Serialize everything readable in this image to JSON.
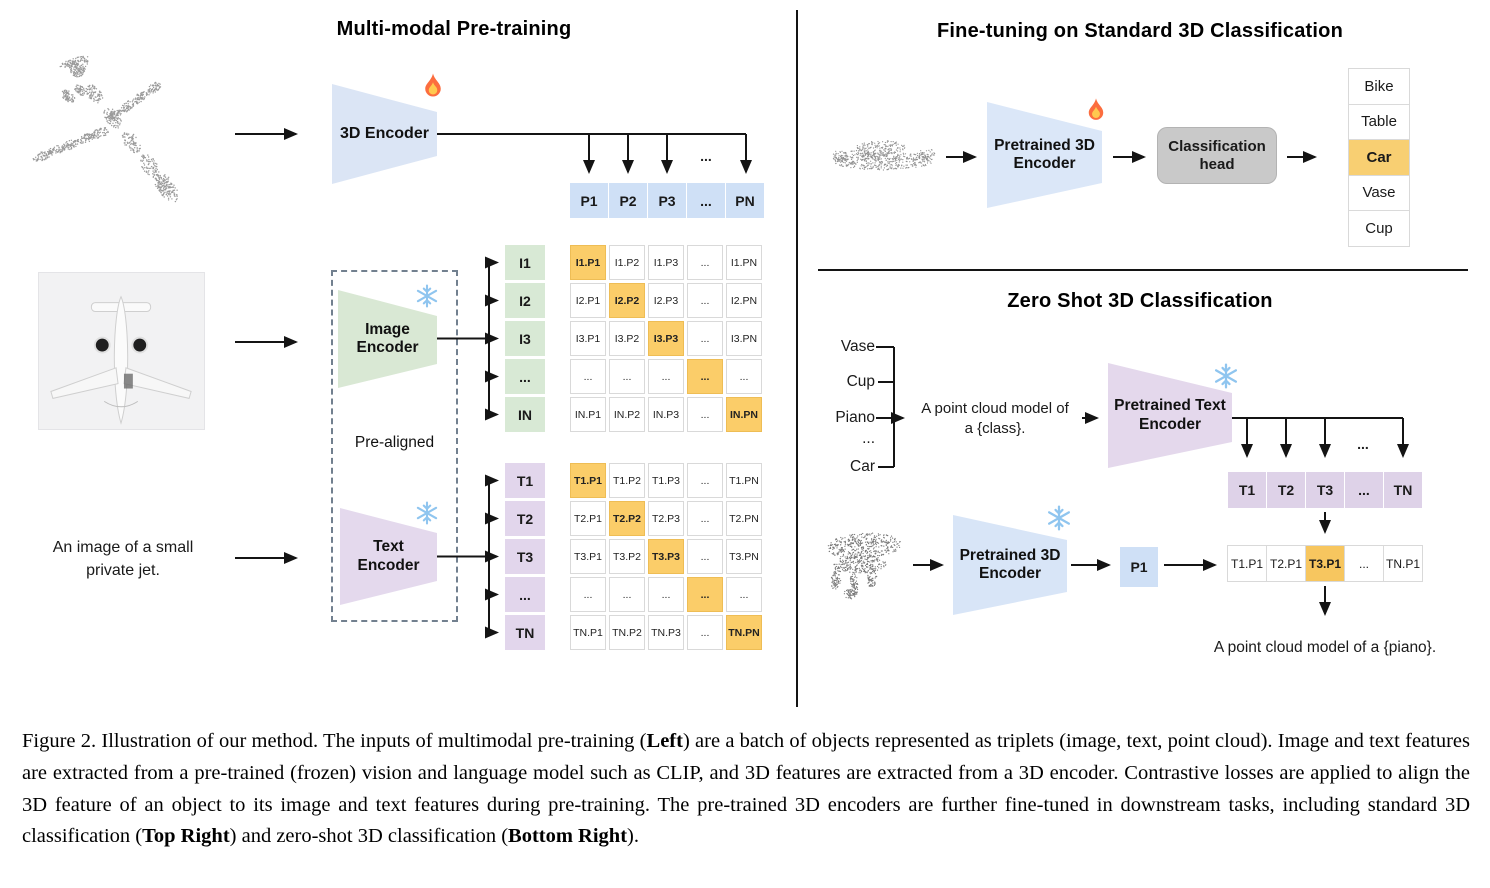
{
  "colors": {
    "highlight_orange": "#fbcd69",
    "cell_blue": "#cfe0f6",
    "cell_green": "#d8e9d5",
    "cell_purple": "#e2d6ec",
    "head_gray": "#c9c9c9",
    "line_black": "#141414"
  },
  "icons": {
    "trainable": "fire-icon",
    "frozen": "snowflake-icon"
  },
  "left": {
    "title": "Multi-modal Pre-training",
    "encoder_3d_label": "3D Encoder",
    "p_row": [
      "P1",
      "P2",
      "P3",
      "...",
      "PN"
    ],
    "p_dots": "...",
    "i_labels": [
      "I1",
      "I2",
      "I3",
      "...",
      "IN"
    ],
    "i_matrix": [
      [
        "I1.P1",
        "I1.P2",
        "I1.P3",
        "...",
        "I1.PN"
      ],
      [
        "I2.P1",
        "I2.P2",
        "I2.P3",
        "...",
        "I2.PN"
      ],
      [
        "I3.P1",
        "I3.P2",
        "I3.P3",
        "...",
        "I3.PN"
      ],
      [
        "...",
        "...",
        "...",
        "...",
        "..."
      ],
      [
        "IN.P1",
        "IN.P2",
        "IN.P3",
        "...",
        "IN.PN"
      ]
    ],
    "image_encoder": [
      "Image",
      "Encoder"
    ],
    "pre_aligned": "Pre-aligned",
    "text_encoder": [
      "Text",
      "Encoder"
    ],
    "t_labels": [
      "T1",
      "T2",
      "T3",
      "...",
      "TN"
    ],
    "t_matrix": [
      [
        "T1.P1",
        "T1.P2",
        "T1.P3",
        "...",
        "T1.PN"
      ],
      [
        "T2.P1",
        "T2.P2",
        "T2.P3",
        "...",
        "T2.PN"
      ],
      [
        "T3.P1",
        "T3.P2",
        "T3.P3",
        "...",
        "T3.PN"
      ],
      [
        "...",
        "...",
        "...",
        "...",
        "..."
      ],
      [
        "TN.P1",
        "TN.P2",
        "TN.P3",
        "...",
        "TN.PN"
      ]
    ],
    "image_caption": [
      "An image of a small",
      "private jet."
    ]
  },
  "top_right": {
    "title": "Fine-tuning on Standard 3D Classification",
    "encoder": [
      "Pretrained 3D",
      "Encoder"
    ],
    "head": [
      "Classification",
      "head"
    ],
    "classes": [
      {
        "label": "Bike",
        "hl": false
      },
      {
        "label": "Table",
        "hl": false
      },
      {
        "label": "Car",
        "hl": true
      },
      {
        "label": "Vase",
        "hl": false
      },
      {
        "label": "Cup",
        "hl": false
      }
    ]
  },
  "bottom_right": {
    "title": "Zero Shot 3D Classification",
    "class_list": [
      "Vase",
      "Cup",
      "Piano",
      "...",
      "Car"
    ],
    "prompt": [
      "A point cloud model of",
      "a {class}."
    ],
    "text_encoder": [
      "Pretrained Text",
      "Encoder"
    ],
    "t_row": [
      "T1",
      "T2",
      "T3",
      "...",
      "TN"
    ],
    "t_dots": "...",
    "encoder_3d": [
      "Pretrained 3D",
      "Encoder"
    ],
    "p_feature": "P1",
    "result_row": [
      {
        "label": "T1.P1",
        "hl": false
      },
      {
        "label": "T2.P1",
        "hl": false
      },
      {
        "label": "T3.P1",
        "hl": true
      },
      {
        "label": "...",
        "hl": false
      },
      {
        "label": "TN.P1",
        "hl": false
      }
    ],
    "result_text": "A point cloud model of a {piano}."
  },
  "caption": {
    "segments": [
      {
        "t": "Figure 2. Illustration of our method. The inputs of multimodal pre-training (",
        "b": false
      },
      {
        "t": "Left",
        "b": true
      },
      {
        "t": ") are a batch of objects represented as triplets (image, text, point cloud).  Image and text features are extracted from a pre-trained (frozen) vision and language model such as CLIP, and 3D features are extracted from a 3D encoder.  Contrastive losses are applied to align the 3D feature of an object to its image and text features during pre-training.  The pre-trained 3D encoders are further fine-tuned in downstream tasks, including standard 3D classification (",
        "b": false
      },
      {
        "t": "Top Right",
        "b": true
      },
      {
        "t": ") and zero-shot 3D classification (",
        "b": false
      },
      {
        "t": "Bottom Right",
        "b": true
      },
      {
        "t": ").",
        "b": false
      }
    ]
  }
}
